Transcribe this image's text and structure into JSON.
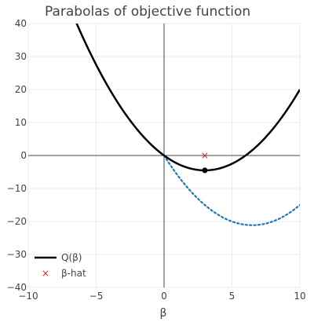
{
  "chart_data": {
    "type": "line",
    "title": "Parabolas of objective function",
    "xlabel": "β",
    "ylabel": "",
    "xlim": [
      -10,
      10
    ],
    "ylim": [
      -40,
      40
    ],
    "x_ticks": [
      -10,
      -5,
      0,
      5,
      10
    ],
    "x_tick_labels": [
      "−10",
      "−5",
      "0",
      "5",
      "10"
    ],
    "y_ticks": [
      -40,
      -30,
      -20,
      -10,
      0,
      10,
      20,
      30,
      40
    ],
    "y_tick_labels": [
      "−40",
      "−30",
      "−20",
      "−10",
      "0",
      "10",
      "20",
      "30",
      "40"
    ],
    "grid": true,
    "legend_position": "bottom-left",
    "series": [
      {
        "name": "Q(β)",
        "kind": "parabola",
        "coeffs": [
          0.5,
          -3,
          0
        ],
        "x_range": [
          -10,
          10
        ],
        "color": "#000000",
        "dash": "solid",
        "in_legend": true
      },
      {
        "kind": "parabola",
        "coeffs": [
          0.5,
          -6.5,
          0
        ],
        "x_range": [
          0,
          10
        ],
        "color": "#1f77b4",
        "dash": "dotted",
        "in_legend": false
      },
      {
        "kind": "parabola",
        "coeffs": [
          0.5,
          -3,
          0
        ],
        "x_range": [
          -10,
          0
        ],
        "color": "#ff7f0e",
        "dash": "dotted",
        "in_legend": false
      }
    ],
    "points": [
      {
        "name": "β-hat",
        "x": 3,
        "y": 0,
        "marker": "x",
        "color": "#d62728",
        "in_legend": true
      },
      {
        "x": 3,
        "y": -4.5,
        "marker": "circle",
        "color": "#000000",
        "in_legend": false
      }
    ]
  }
}
